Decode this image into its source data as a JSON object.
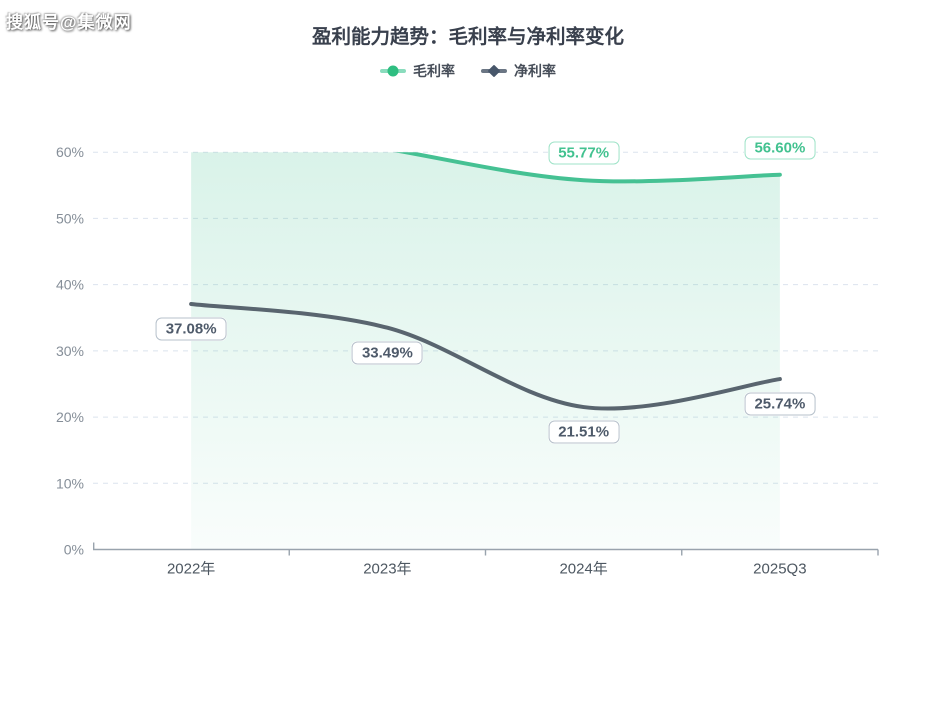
{
  "watermark": "搜狐号@集微网",
  "title": "盈利能力趋势：毛利率与净利率变化",
  "legend": [
    {
      "name": "毛利率",
      "marker": "circle",
      "color": "#2FBE81",
      "line_color": "#8ADCBD"
    },
    {
      "name": "净利率",
      "marker": "diamond",
      "color": "#47566A",
      "line_color": "#6B7684"
    }
  ],
  "colors": {
    "background": "#ffffff",
    "title_text": "#39404d",
    "gridline": "#dbe3ee",
    "axis_line": "#99a3ad",
    "y_tick_text": "#858e98",
    "x_tick_text": "#4d5761",
    "gross_margin_green": "#45C193",
    "net_margin_slate": "#59656F"
  },
  "chart_data": {
    "type": "line",
    "title": "盈利能力趋势：毛利率与净利率变化",
    "categories": [
      "2022年",
      "2023年",
      "2024年",
      "2025Q3"
    ],
    "y_ticks": [
      "0%",
      "10%",
      "20%",
      "30%",
      "40%",
      "50%",
      "60%"
    ],
    "ylim": [
      0,
      60
    ],
    "grid": "horizontal dashed lines",
    "legend_position": "top center",
    "series": [
      {
        "name": "毛利率",
        "type": "line",
        "smooth": true,
        "area": true,
        "color": "#45C193",
        "area_gradient_top": "rgba(69,193,147,0.22)",
        "area_gradient_bottom": "rgba(69,193,147,0.03)",
        "label_position": "above",
        "label_text_color": "#43C290",
        "label_border_color": "#9FE3C8",
        "values": [
          null,
          null,
          55.77,
          56.6
        ],
        "labels": [
          null,
          null,
          "55.77%",
          "56.60%"
        ],
        "note": "2022 and 2023 values lie above the 60% axis maximum and are clipped out of view; no data labels shown for them"
      },
      {
        "name": "净利率",
        "type": "line",
        "smooth": true,
        "area": false,
        "color": "#59656F",
        "label_position": "below",
        "label_text_color": "#4E5A6A",
        "label_border_color": "#B7C1CB",
        "values": [
          37.08,
          33.49,
          21.51,
          25.74
        ],
        "labels": [
          "37.08%",
          "33.49%",
          "21.51%",
          "25.74%"
        ]
      }
    ]
  }
}
